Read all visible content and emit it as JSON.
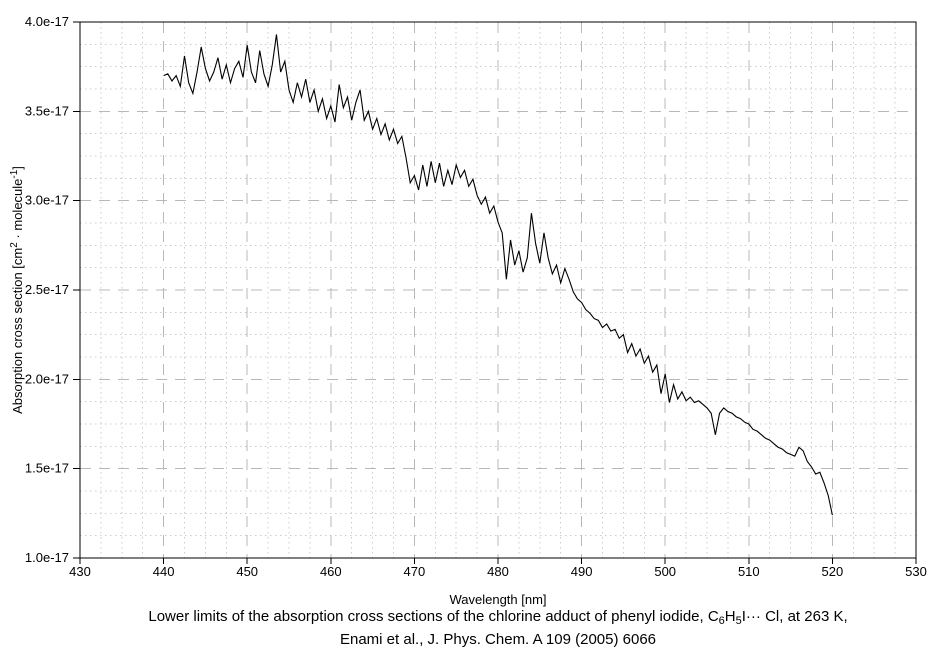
{
  "chart_data": {
    "type": "line",
    "title": "",
    "xlabel": "Wavelength [nm]",
    "ylabel": "Absorption cross section [cm2 · molecule-1]",
    "ylabel_segments": [
      {
        "text": "Absorption cross section [cm",
        "style": ""
      },
      {
        "text": "2",
        "style": "sup"
      },
      {
        "text": " · molecule",
        "style": ""
      },
      {
        "text": "-1",
        "style": "sup"
      },
      {
        "text": "]",
        "style": ""
      }
    ],
    "xlim": [
      430,
      530
    ],
    "ylim_e17": [
      1.0,
      4.0
    ],
    "x_tick_step": 10,
    "x_minor_step": 2.5,
    "y_tick_step_e17": 0.5,
    "y_minor_step_e17": 0.125,
    "x_tick_labels": [
      "430",
      "440",
      "450",
      "460",
      "470",
      "480",
      "490",
      "500",
      "510",
      "520",
      "530"
    ],
    "y_tick_labels": [
      "1.0e-17",
      "1.5e-17",
      "2.0e-17",
      "2.5e-17",
      "3.0e-17",
      "3.5e-17",
      "4.0e-17"
    ],
    "grid": {
      "major": true,
      "minor": true
    },
    "legend": null,
    "series": [
      {
        "name": "Absorption cross section lower limit, C6H5I···Cl at 263 K",
        "color": "#000000",
        "unit": "1e-17 cm2 · molecule-1",
        "x_start_nm": 440,
        "x_step_nm": 0.5,
        "values_e17": [
          3.7,
          3.71,
          3.67,
          3.7,
          3.64,
          3.81,
          3.66,
          3.6,
          3.72,
          3.86,
          3.74,
          3.67,
          3.72,
          3.8,
          3.68,
          3.76,
          3.66,
          3.74,
          3.78,
          3.69,
          3.87,
          3.72,
          3.66,
          3.84,
          3.71,
          3.64,
          3.76,
          3.93,
          3.72,
          3.78,
          3.62,
          3.55,
          3.66,
          3.58,
          3.68,
          3.55,
          3.62,
          3.5,
          3.57,
          3.46,
          3.53,
          3.44,
          3.65,
          3.52,
          3.58,
          3.45,
          3.55,
          3.62,
          3.45,
          3.5,
          3.4,
          3.46,
          3.37,
          3.43,
          3.34,
          3.4,
          3.32,
          3.36,
          3.24,
          3.1,
          3.14,
          3.06,
          3.2,
          3.08,
          3.22,
          3.1,
          3.21,
          3.08,
          3.17,
          3.09,
          3.2,
          3.13,
          3.17,
          3.08,
          3.12,
          3.03,
          2.98,
          3.02,
          2.93,
          2.97,
          2.88,
          2.82,
          2.56,
          2.78,
          2.64,
          2.72,
          2.6,
          2.68,
          2.93,
          2.76,
          2.65,
          2.82,
          2.68,
          2.59,
          2.64,
          2.54,
          2.62,
          2.56,
          2.49,
          2.45,
          2.43,
          2.39,
          2.37,
          2.34,
          2.33,
          2.29,
          2.31,
          2.27,
          2.28,
          2.23,
          2.25,
          2.15,
          2.2,
          2.13,
          2.17,
          2.09,
          2.13,
          2.04,
          2.08,
          1.92,
          2.03,
          1.87,
          1.97,
          1.89,
          1.93,
          1.88,
          1.9,
          1.87,
          1.88,
          1.86,
          1.84,
          1.81,
          1.69,
          1.81,
          1.84,
          1.82,
          1.81,
          1.79,
          1.78,
          1.76,
          1.75,
          1.72,
          1.71,
          1.69,
          1.67,
          1.66,
          1.64,
          1.62,
          1.61,
          1.59,
          1.58,
          1.57,
          1.62,
          1.6,
          1.54,
          1.51,
          1.47,
          1.48,
          1.42,
          1.35,
          1.24
        ]
      }
    ]
  },
  "caption": {
    "line1_segments": [
      {
        "text": "Lower limits of the absorption cross sections of the chlorine adduct of phenyl iodide, C",
        "style": ""
      },
      {
        "text": "6",
        "style": "sub"
      },
      {
        "text": "H",
        "style": ""
      },
      {
        "text": "5",
        "style": "sub"
      },
      {
        "text": "I··· Cl, at 263 K,",
        "style": ""
      }
    ],
    "line2": "Enami et al., J. Phys. Chem. A 109 (2005) 6066"
  },
  "colors": {
    "line": "#000000",
    "axis": "#000000",
    "grid_major": "#b8b8b8",
    "grid_minor": "#cccccc",
    "text": "#000000",
    "background": "#ffffff"
  }
}
